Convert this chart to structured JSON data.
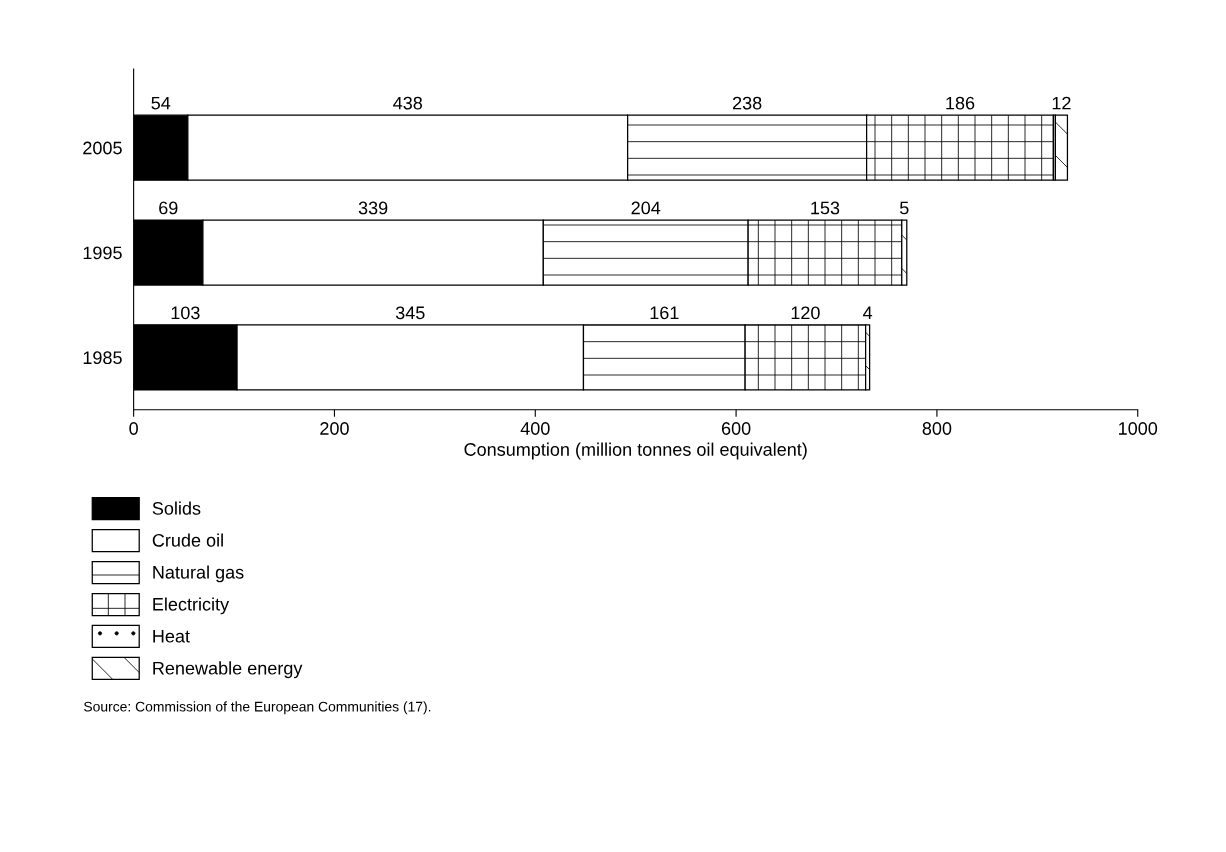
{
  "chart_data": {
    "type": "bar",
    "orientation": "horizontal",
    "stacked": true,
    "categories": [
      "2005",
      "1995",
      "1985"
    ],
    "xlabel": "Consumption (million tonnes oil equivalent)",
    "xlim": [
      0,
      1000
    ],
    "xticks": [
      0,
      200,
      400,
      600,
      800,
      1000
    ],
    "grid": false,
    "legend": "bottom left",
    "series": [
      {
        "name": "Solids",
        "color": "#000000",
        "values": [
          54,
          69,
          103
        ],
        "value_labels": [
          "54",
          "69",
          "103"
        ]
      },
      {
        "name": "Crude oil",
        "color": "#ffffff",
        "values": [
          438,
          339,
          345
        ],
        "value_labels": [
          "438",
          "339",
          "345"
        ]
      },
      {
        "name": "Natural gas",
        "color": "#ffffff",
        "values": [
          238,
          204,
          161
        ],
        "value_labels": [
          "238",
          "204",
          "161"
        ]
      },
      {
        "name": "Electricity",
        "color": "#ffffff",
        "values": [
          186,
          153,
          120
        ],
        "value_labels": [
          "186",
          "153",
          "120"
        ]
      },
      {
        "name": "Heat",
        "color": "#ffffff",
        "values": [
          2,
          null,
          null
        ],
        "value_labels": [
          null,
          null,
          null
        ]
      },
      {
        "name": "Renewable energy",
        "color": "#ffffff",
        "values": [
          12,
          5,
          4
        ],
        "value_labels": [
          "12",
          "5",
          "4"
        ]
      }
    ],
    "annotations": [
      "Source: Commission of the European Communities (17)."
    ]
  }
}
